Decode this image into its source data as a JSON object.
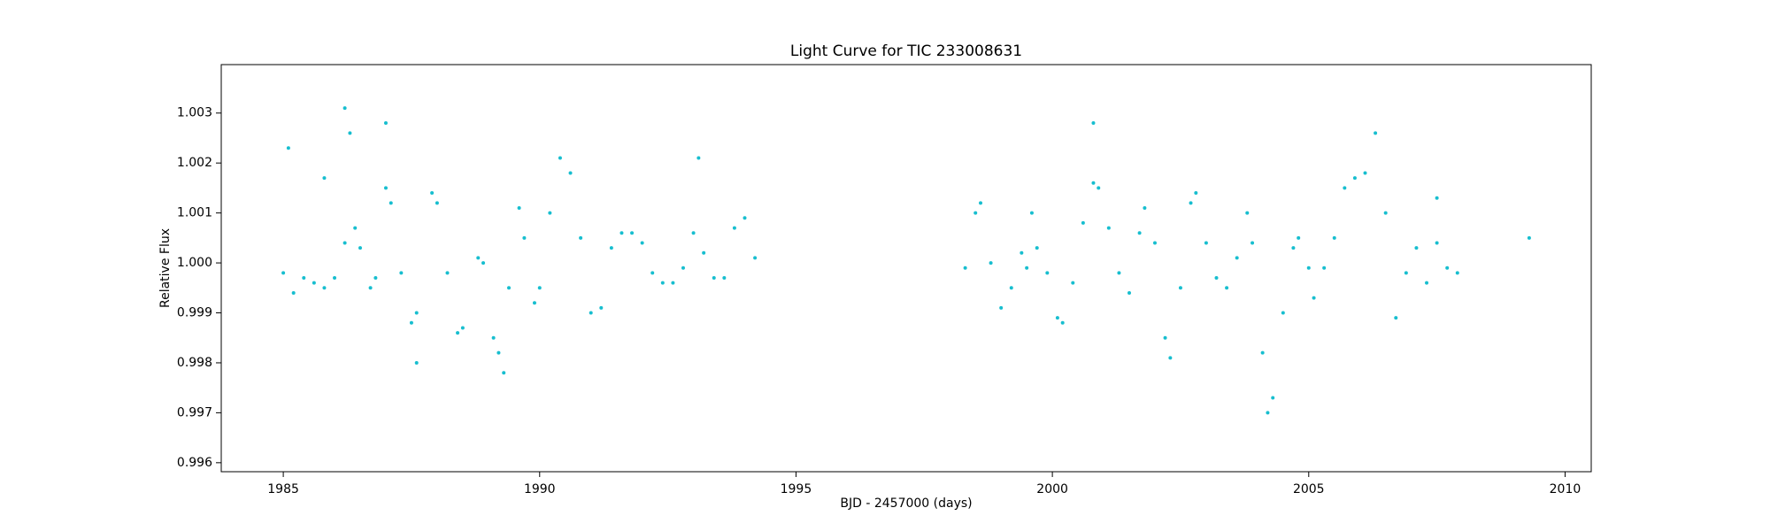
{
  "chart_data": {
    "type": "scatter",
    "title": "Light Curve for TIC 233008631",
    "x_label": "BJD - 2457000 (days)",
    "y_label": "Relative Flux",
    "color": "#17becf",
    "xlim": [
      1983.79,
      2010.51
    ],
    "ylim": [
      0.99582,
      1.00397
    ],
    "xticks": [
      1985,
      1990,
      1995,
      2000,
      2005,
      2010
    ],
    "yticks": [
      0.996,
      0.997,
      0.998,
      0.999,
      {
        "value": 1,
        "label": "1.000"
      },
      1.001,
      1.002,
      1.003
    ],
    "x": [
      1985.0,
      1985.2,
      1985.4,
      1985.6,
      1985.8,
      1986.0,
      1986.2,
      1986.4,
      1986.5,
      1986.7,
      1986.8,
      1987.0,
      1987.1,
      1987.3,
      1987.5,
      1987.6,
      1987.9,
      1988.0,
      1988.2,
      1988.4,
      1988.5,
      1988.8,
      1988.9,
      1989.1,
      1989.2,
      1989.4,
      1989.6,
      1989.7,
      1989.9,
      1990.0,
      1990.2,
      1990.4,
      1990.6,
      1990.8,
      1991.0,
      1991.2,
      1991.4,
      1991.6,
      1991.8,
      1992.0,
      1992.2,
      1992.4,
      1992.6,
      1992.8,
      1993.0,
      1993.2,
      1993.4,
      1993.6,
      1993.8,
      1994.0,
      1994.2,
      1998.3,
      1998.5,
      1998.6,
      1998.8,
      1999.0,
      1999.2,
      1999.4,
      1999.5,
      1999.7,
      1999.9,
      2000.1,
      2000.2,
      2000.4,
      2000.6,
      2000.8,
      2000.9,
      2001.1,
      2001.3,
      2001.5,
      2001.7,
      2001.8,
      2002.0,
      2002.2,
      2002.3,
      2002.5,
      2002.7,
      2002.8,
      2003.0,
      2003.2,
      2003.4,
      2003.6,
      2003.8,
      2003.9,
      2004.1,
      2004.2,
      2004.3,
      2004.5,
      2004.7,
      2004.8,
      2005.0,
      2005.1,
      2005.3,
      2005.5,
      2005.7,
      2005.9,
      2006.1,
      2006.3,
      2006.5,
      2006.7,
      2006.9,
      2007.1,
      2007.3,
      2007.5,
      2007.7,
      2007.9,
      1985.1,
      1986.2,
      1986.3,
      1987.0,
      1985.8,
      1987.6,
      1993.1,
      1989.3,
      2000.8,
      2009.3,
      1999.6,
      2007.5
    ],
    "values": [
      0.9998,
      0.9994,
      0.9997,
      0.9996,
      0.9995,
      0.9997,
      1.0004,
      1.0007,
      1.0003,
      0.9995,
      0.9997,
      1.0015,
      1.0012,
      0.9998,
      0.9988,
      0.999,
      1.0014,
      1.0012,
      0.9998,
      0.9986,
      0.9987,
      1.0001,
      1.0,
      0.9985,
      0.9982,
      0.9995,
      1.0011,
      1.0005,
      0.9992,
      0.9995,
      1.001,
      1.0021,
      1.0018,
      1.0005,
      0.999,
      0.9991,
      1.0003,
      1.0006,
      1.0006,
      1.0004,
      0.9998,
      0.9996,
      0.9996,
      0.9999,
      1.0006,
      1.0002,
      0.9997,
      0.9997,
      1.0007,
      1.0009,
      1.0001,
      0.9999,
      1.001,
      1.0012,
      1.0,
      0.9991,
      0.9995,
      1.0002,
      0.9999,
      1.0003,
      0.9998,
      0.9989,
      0.9988,
      0.9996,
      1.0008,
      1.0016,
      1.0015,
      1.0007,
      0.9998,
      0.9994,
      1.0006,
      1.0011,
      1.0004,
      0.9985,
      0.9981,
      0.9995,
      1.0012,
      1.0014,
      1.0004,
      0.9997,
      0.9995,
      1.0001,
      1.001,
      1.0004,
      0.9982,
      0.997,
      0.9973,
      0.999,
      1.0003,
      1.0005,
      0.9999,
      0.9993,
      0.9999,
      1.0005,
      1.0015,
      1.0017,
      1.0018,
      1.0026,
      1.001,
      0.9989,
      0.9998,
      1.0003,
      0.9996,
      1.0004,
      0.9999,
      0.9998,
      1.0023,
      1.0031,
      1.0026,
      1.0028,
      1.0017,
      0.998,
      1.0021,
      0.9978,
      1.0028,
      1.0005,
      1.001,
      1.0013
    ]
  }
}
